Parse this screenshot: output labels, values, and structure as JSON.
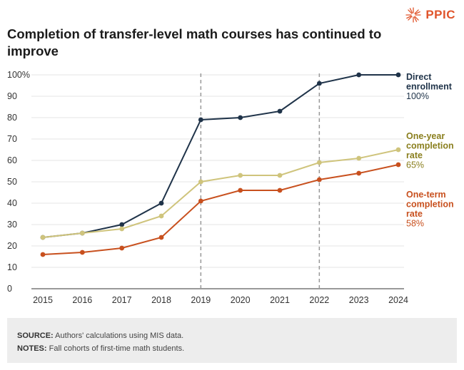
{
  "brand": {
    "logo_text": "PPIC",
    "accent": "#e0542b"
  },
  "title": "Completion of transfer-level math courses has continued to improve",
  "footer": {
    "source_label": "SOURCE:",
    "source_text": " Authors' calculations using MIS data.",
    "notes_label": "NOTES:",
    "notes_text": " Fall cohorts of first-time math students."
  },
  "chart_data": {
    "type": "line",
    "title": "Completion of transfer-level math courses has continued to improve",
    "xlabel": "",
    "ylabel": "",
    "x": [
      2015,
      2016,
      2017,
      2018,
      2019,
      2020,
      2021,
      2022,
      2023,
      2024
    ],
    "ylim": [
      0,
      100
    ],
    "yticks": [
      0,
      10,
      20,
      30,
      40,
      50,
      60,
      70,
      80,
      90,
      100
    ],
    "ytick_labels": [
      "0",
      "10",
      "20",
      "30",
      "40",
      "50",
      "60",
      "70",
      "80",
      "90",
      "100%"
    ],
    "grid": true,
    "reference_lines_x": [
      2019,
      2022
    ],
    "series": [
      {
        "name": "Direct enrollment",
        "label_lines": [
          "Direct",
          "enrollment"
        ],
        "end_label": "100%",
        "color": "#1f3349",
        "label_color": "#1f3349",
        "values": [
          24,
          26,
          30,
          40,
          79,
          80,
          83,
          96,
          100,
          100
        ]
      },
      {
        "name": "One-year completion rate",
        "label_lines": [
          "One-year",
          "completion",
          "rate"
        ],
        "end_label": "65%",
        "color": "#cfc47c",
        "label_color": "#8a7f1e",
        "values": [
          24,
          26,
          28,
          34,
          50,
          53,
          53,
          59,
          61,
          65
        ]
      },
      {
        "name": "One-term completion rate",
        "label_lines": [
          "One-term",
          "completion",
          "rate"
        ],
        "end_label": "58%",
        "color": "#c8501e",
        "label_color": "#c8501e",
        "values": [
          16,
          17,
          19,
          24,
          41,
          46,
          46,
          51,
          54,
          58
        ]
      }
    ]
  }
}
